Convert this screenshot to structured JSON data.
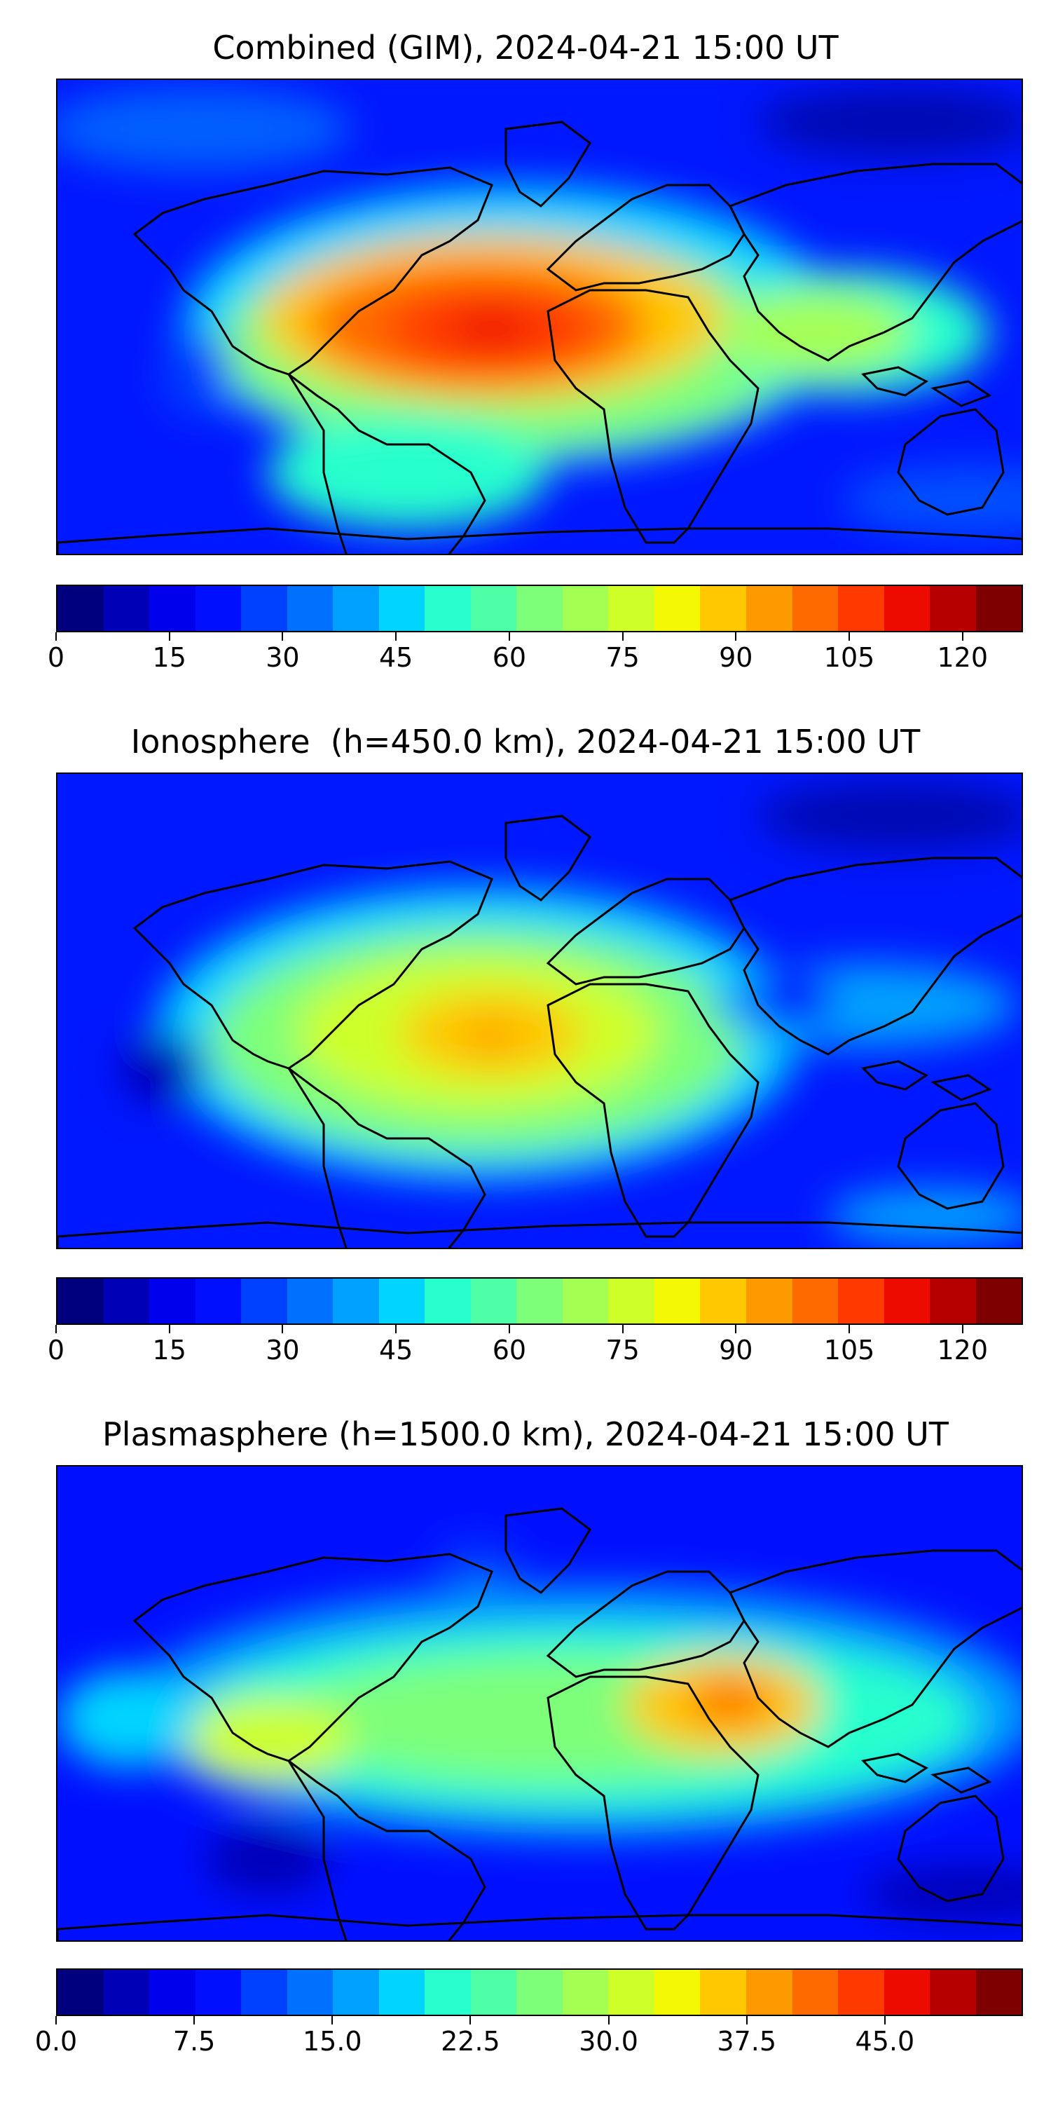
{
  "colors": {
    "scale": [
      "#00007f",
      "#0000b6",
      "#0000ed",
      "#0010ff",
      "#0040ff",
      "#0070ff",
      "#00a0ff",
      "#00d4ff",
      "#28ffce",
      "#4fffa7",
      "#7dff7a",
      "#a4ff53",
      "#ceff29",
      "#f4f802",
      "#ffc800",
      "#ff9900",
      "#ff6a00",
      "#ff3a00",
      "#ed0b00",
      "#b60000",
      "#7f0000"
    ],
    "coast": "#000000"
  },
  "panels": [
    {
      "title": "Combined (GIM), 2024-04-21 15:00 UT",
      "colorbar": {
        "min": 0,
        "max": 128,
        "ticks": [
          "0",
          "15",
          "30",
          "45",
          "60",
          "75",
          "90",
          "105",
          "120"
        ],
        "tick_values": [
          0,
          15,
          30,
          45,
          60,
          75,
          90,
          105,
          120
        ]
      }
    },
    {
      "title": "Ionosphere  (h=450.0 km), 2024-04-21 15:00 UT",
      "colorbar": {
        "min": 0,
        "max": 128,
        "ticks": [
          "0",
          "15",
          "30",
          "45",
          "60",
          "75",
          "90",
          "105",
          "120"
        ],
        "tick_values": [
          0,
          15,
          30,
          45,
          60,
          75,
          90,
          105,
          120
        ]
      }
    },
    {
      "title": "Plasmasphere (h=1500.0 km), 2024-04-21 15:00 UT",
      "colorbar": {
        "min": 0,
        "max": 52.5,
        "ticks": [
          "0.0",
          "7.5",
          "15.0",
          "22.5",
          "30.0",
          "37.5",
          "45.0"
        ],
        "tick_values": [
          0,
          7.5,
          15,
          22.5,
          30,
          37.5,
          45
        ]
      }
    }
  ]
}
